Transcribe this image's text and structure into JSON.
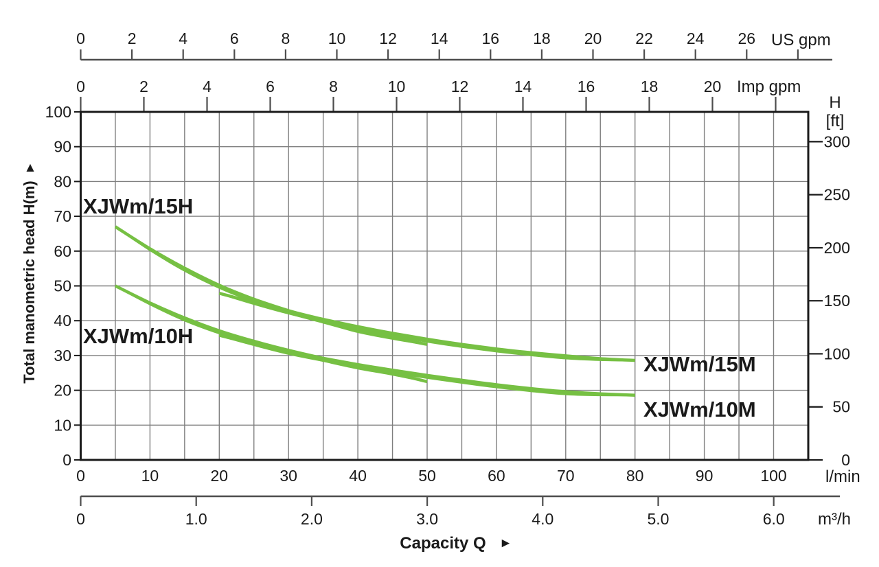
{
  "colors": {
    "curve_green": "#76c043",
    "grid_gray": "#7f7f7f",
    "axis_gray": "#4d4d4d",
    "border_black": "#1a1a1a",
    "text_black": "#1a1a1a",
    "background": "#ffffff"
  },
  "chart_data": {
    "type": "line",
    "xlabel": "Capacity Q",
    "xlabel_arrow": "►",
    "ylabel": "Total manometric head H(m)",
    "ylabel_arrow": "▲",
    "grid": true,
    "legend_position": "inline-curve-labels",
    "x_axes": [
      {
        "id": "us_gpm",
        "label": "US gpm",
        "tick_values": [
          0,
          2,
          4,
          6,
          8,
          10,
          12,
          14,
          16,
          18,
          20,
          22,
          24,
          26
        ],
        "extra_unlabeled_tick": true
      },
      {
        "id": "imp_gpm",
        "label": "Imp gpm",
        "tick_values": [
          0,
          2,
          4,
          6,
          8,
          10,
          12,
          14,
          16,
          18,
          20
        ],
        "extra_unlabeled_tick": true
      },
      {
        "id": "l_min",
        "label": "l/min",
        "tick_values": [
          0,
          10,
          20,
          30,
          40,
          50,
          60,
          70,
          80,
          90,
          100
        ]
      },
      {
        "id": "m3_h",
        "label": "m³/h",
        "tick_labels": [
          "0",
          "1.0",
          "2.0",
          "3.0",
          "4.0",
          "5.0",
          "6.0"
        ]
      }
    ],
    "y_axes": [
      {
        "id": "head_m",
        "label": "H(m)",
        "tick_values": [
          0,
          10,
          20,
          30,
          40,
          50,
          60,
          70,
          80,
          90,
          100
        ],
        "range": [
          0,
          100
        ]
      },
      {
        "id": "head_ft",
        "label_line1": "H",
        "label_line2": "[ft]",
        "tick_values": [
          0,
          50,
          100,
          150,
          200,
          250,
          300
        ]
      }
    ],
    "series": [
      {
        "name": "XJWm/15H",
        "points_l_min_vs_m": [
          [
            5,
            67
          ],
          [
            10,
            60.7
          ],
          [
            15,
            55.1
          ],
          [
            20,
            50.2
          ],
          [
            25,
            46.2
          ],
          [
            30,
            42.9
          ],
          [
            35,
            40.2
          ],
          [
            40,
            37.5
          ],
          [
            45,
            35.2
          ],
          [
            50,
            33.2
          ]
        ]
      },
      {
        "name": "XJWm/15M",
        "points_l_min_vs_m": [
          [
            20,
            47.9
          ],
          [
            25,
            45.2
          ],
          [
            30,
            42.8
          ],
          [
            35,
            40.4
          ],
          [
            40,
            38.3
          ],
          [
            45,
            36.4
          ],
          [
            50,
            34.7
          ],
          [
            55,
            33.2
          ],
          [
            60,
            31.9
          ],
          [
            65,
            30.8
          ],
          [
            70,
            29.9
          ],
          [
            75,
            29.1
          ],
          [
            80,
            28.6
          ]
        ]
      },
      {
        "name": "XJWm/10H",
        "points_l_min_vs_m": [
          [
            5,
            50
          ],
          [
            10,
            45.1
          ],
          [
            15,
            40.8
          ],
          [
            20,
            37.1
          ],
          [
            25,
            34.1
          ],
          [
            30,
            31.5
          ],
          [
            35,
            29.2
          ],
          [
            40,
            27
          ],
          [
            45,
            24.9
          ],
          [
            50,
            22.5
          ]
        ]
      },
      {
        "name": "XJWm/10M",
        "points_l_min_vs_m": [
          [
            20,
            35.8
          ],
          [
            25,
            33.4
          ],
          [
            30,
            31.2
          ],
          [
            35,
            29.2
          ],
          [
            40,
            27.4
          ],
          [
            45,
            25.8
          ],
          [
            50,
            24.3
          ],
          [
            55,
            22.9
          ],
          [
            60,
            21.6
          ],
          [
            65,
            20.5
          ],
          [
            70,
            19.6
          ],
          [
            75,
            19
          ],
          [
            80,
            18.6
          ]
        ]
      }
    ]
  }
}
